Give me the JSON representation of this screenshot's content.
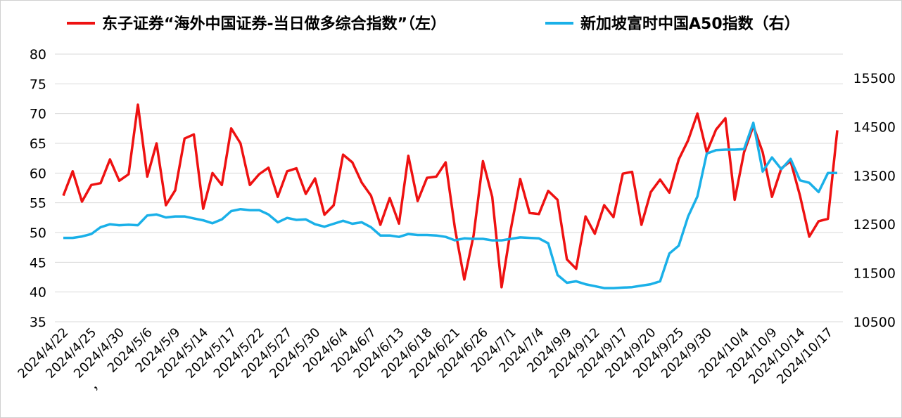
{
  "chart_data": {
    "type": "line",
    "legend_position": "top",
    "grid": true,
    "x": [
      "2024/4/22",
      "2024/4/23",
      "2024/4/24",
      "2024/4/25",
      "2024/4/26",
      "2024/4/29",
      "2024/4/30",
      "2024/5/6a",
      "2024/5/6b",
      "2024/5/6",
      "2024/5/7",
      "2024/5/8",
      "2024/5/9",
      "2024/5/10",
      "2024/5/13",
      "2024/5/14",
      "2024/5/15",
      "2024/5/16",
      "2024/5/17",
      "2024/5/20",
      "2024/5/21",
      "2024/5/22",
      "2024/5/23",
      "2024/5/24",
      "2024/5/27",
      "2024/5/28",
      "2024/5/29",
      "2024/5/30",
      "2024/5/31",
      "2024/6/3",
      "2024/6/4",
      "2024/6/5",
      "2024/6/6",
      "2024/6/7",
      "2024/6/11",
      "2024/6/12",
      "2024/6/13",
      "2024/6/14",
      "2024/6/17",
      "2024/6/18",
      "2024/6/19",
      "2024/6/20",
      "2024/6/21",
      "2024/6/24",
      "2024/6/25",
      "2024/6/26",
      "2024/6/27",
      "2024/6/28",
      "2024/7/1",
      "2024/7/2",
      "2024/7/3",
      "2024/7/4",
      "2024/7/5",
      "2024/9/6",
      "2024/9/9",
      "2024/9/10",
      "2024/9/11",
      "2024/9/12",
      "2024/9/13",
      "2024/9/16",
      "2024/9/17",
      "2024/9/18",
      "2024/9/19",
      "2024/9/20",
      "2024/9/23",
      "2024/9/24",
      "2024/9/25",
      "2024/9/26",
      "2024/9/27",
      "2024/9/30",
      "2024/10/1",
      "2024/10/2",
      "2024/10/3",
      "2024/10/4",
      "2024/10/7",
      "2024/10/8",
      "2024/10/9",
      "2024/10/10",
      "2024/10/11",
      "2024/10/14",
      "2024/10/15",
      "2024/10/16",
      "2024/10/17",
      "2024/10/18"
    ],
    "x_tick_labels": [
      "2024/4/22",
      "2024/4/25",
      "2024/4/30",
      "2024/5/6",
      "2024/5/9",
      "2024/5/14",
      "2024/5/17",
      "2024/5/22",
      "2024/5/27",
      "2024/5/30",
      "2024/6/4",
      "2024/6/7",
      "2024/6/13",
      "2024/6/18",
      "2024/6/21",
      "2024/6/26",
      "2024/7/1",
      "2024/7/4",
      "2024/9/9",
      "2024/9/12",
      "2024/9/17",
      "2024/9/20",
      "2024/9/25",
      "2024/9/30",
      "2024/10/4",
      "2024/10/9",
      "2024/10/14",
      "2024/10/17"
    ],
    "x_tick_prefixes": [
      "",
      "",
      "",
      "，",
      "",
      "",
      "",
      "",
      "",
      "",
      "",
      "",
      "",
      "",
      "",
      "",
      "",
      "",
      "",
      "",
      "",
      "",
      "",
      "",
      "",
      "",
      "",
      ""
    ],
    "ylim_left": [
      35,
      80
    ],
    "yticks_left": [
      35,
      40,
      45,
      50,
      55,
      60,
      65,
      70,
      75,
      80
    ],
    "ylim_right": [
      10500,
      15500
    ],
    "yticks_right": [
      10500,
      11500,
      12500,
      13500,
      14500,
      15500
    ],
    "series": [
      {
        "name": "东子证券“海外中国证券-当日做多综合指数”（左）",
        "axis": "left",
        "color": "#ee1111",
        "values": [
          56.2,
          60.3,
          55.2,
          58.0,
          58.3,
          62.3,
          58.7,
          59.8,
          71.5,
          59.4,
          65.0,
          54.6,
          57.1,
          65.8,
          66.5,
          54.0,
          60.0,
          58.0,
          67.5,
          65.0,
          58.0,
          59.8,
          60.9,
          56.0,
          60.3,
          60.8,
          56.5,
          59.1,
          53.0,
          54.6,
          63.1,
          61.8,
          58.4,
          56.2,
          51.3,
          55.8,
          51.5,
          62.9,
          55.3,
          59.2,
          59.4,
          61.8,
          50.7,
          42.1,
          49.5,
          62.0,
          56.0,
          40.8,
          50.6,
          59.0,
          53.3,
          53.1,
          57.0,
          55.5,
          45.5,
          43.9,
          52.7,
          49.8,
          54.6,
          52.6,
          59.9,
          60.2,
          51.3,
          56.8,
          58.9,
          56.7,
          62.3,
          65.5,
          70.0,
          63.5,
          67.3,
          69.2,
          55.5,
          63.5,
          67.9,
          63.5,
          56.0,
          60.8,
          62.0,
          56.2,
          49.3,
          51.9,
          52.3,
          67.2
        ]
      },
      {
        "name": "新加坡富时中国A50指数（右）",
        "axis": "right",
        "color": "#1ab0e8",
        "values": [
          12220,
          12220,
          12250,
          12300,
          12440,
          12500,
          12480,
          12490,
          12480,
          12680,
          12700,
          12640,
          12660,
          12660,
          12620,
          12580,
          12520,
          12600,
          12770,
          12810,
          12790,
          12790,
          12700,
          12540,
          12630,
          12590,
          12600,
          12500,
          12450,
          12510,
          12570,
          12510,
          12540,
          12440,
          12270,
          12270,
          12240,
          12300,
          12280,
          12280,
          12270,
          12240,
          12170,
          12210,
          12200,
          12200,
          12170,
          12170,
          12200,
          12230,
          12220,
          12210,
          12110,
          11460,
          11300,
          11330,
          11270,
          11230,
          11190,
          11190,
          11200,
          11210,
          11240,
          11270,
          11330,
          11900,
          12060,
          12660,
          13070,
          13950,
          14020,
          14030,
          14030,
          14040,
          14580,
          13580,
          13870,
          13630,
          13840,
          13400,
          13350,
          13160,
          13550,
          13550
        ]
      }
    ]
  }
}
